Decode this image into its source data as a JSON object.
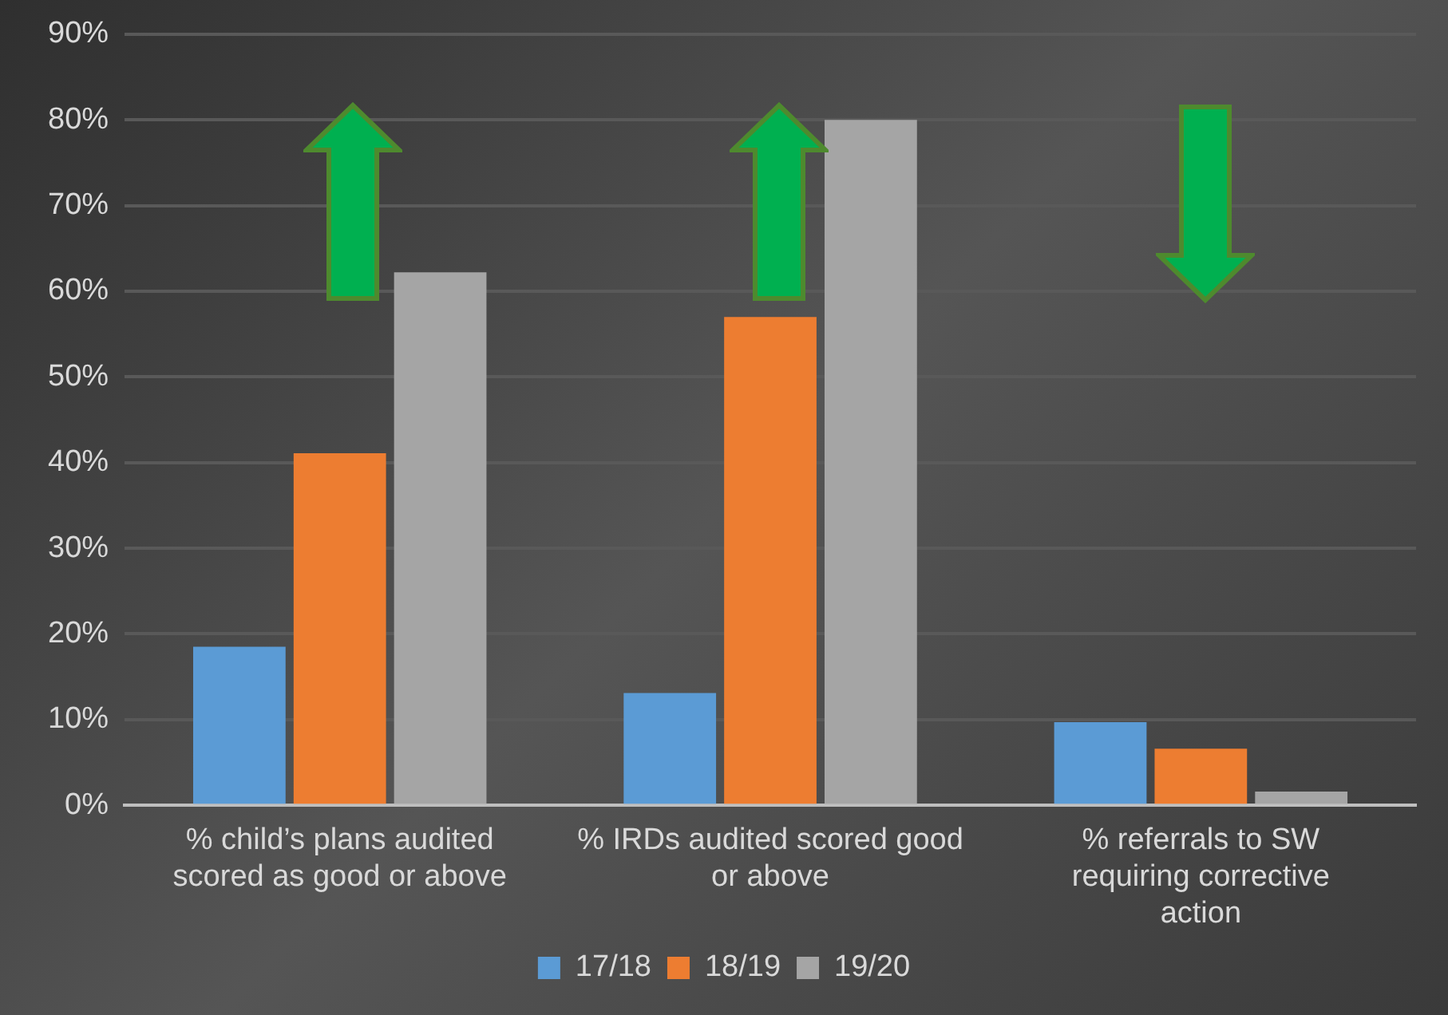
{
  "chart_data": {
    "type": "bar",
    "categories": [
      "% child’s plans audited scored as good or above",
      "% IRDs audited scored good or above",
      "% referrals to SW requiring corrective action"
    ],
    "series": [
      {
        "name": "17/18",
        "color": "#5b9bd5",
        "values": [
          18.5,
          13.1,
          9.7
        ]
      },
      {
        "name": "18/19",
        "color": "#ed7d31",
        "values": [
          41.1,
          57,
          6.6
        ]
      },
      {
        "name": "19/20",
        "color": "#a5a5a5",
        "values": [
          62.2,
          80,
          1.6
        ]
      }
    ],
    "ylim": [
      0,
      90
    ],
    "yticks": [
      {
        "value": 0,
        "label": "0%"
      },
      {
        "value": 10,
        "label": "10%"
      },
      {
        "value": 20,
        "label": "20%"
      },
      {
        "value": 30,
        "label": "30%"
      },
      {
        "value": 40,
        "label": "40%"
      },
      {
        "value": 50,
        "label": "50%"
      },
      {
        "value": 60,
        "label": "60%"
      },
      {
        "value": 70,
        "label": "70%"
      },
      {
        "value": 80,
        "label": "80%"
      },
      {
        "value": 90,
        "label": "90%"
      }
    ],
    "grid": "y",
    "legend": "bottom"
  }
}
